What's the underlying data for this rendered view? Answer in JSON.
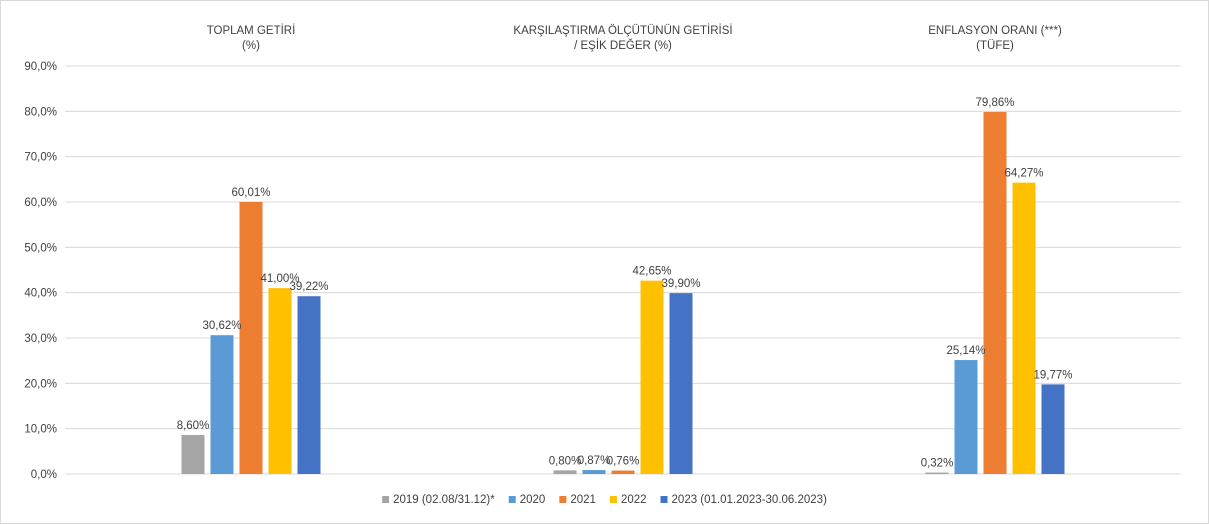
{
  "chart_data": {
    "type": "bar",
    "categories": [
      [
        "TOPLAM GETİRİ",
        "(%)"
      ],
      [
        "KARŞILAŞTIRMA ÖLÇÜTÜNÜN GETİRİSİ",
        "/ EŞİK DEĞER (%)"
      ],
      [
        "ENFLASYON ORANI (***)",
        "(TÜFE)"
      ]
    ],
    "series": [
      {
        "name": "2019 (02.08/31.12)*",
        "color": "#a5a5a5",
        "values": [
          8.6,
          0.8,
          0.32
        ],
        "labels": [
          "8,60%",
          "0,80%",
          "0,32%"
        ]
      },
      {
        "name": "2020",
        "color": "#5b9bd5",
        "values": [
          30.62,
          0.87,
          25.14
        ],
        "labels": [
          "30,62%",
          "0,87%",
          "25,14%"
        ]
      },
      {
        "name": "2021",
        "color": "#ed7d31",
        "values": [
          60.01,
          0.76,
          79.86
        ],
        "labels": [
          "60,01%",
          "0,76%",
          "79,86%"
        ]
      },
      {
        "name": "2022",
        "color": "#ffc000",
        "values": [
          41.0,
          42.65,
          64.27
        ],
        "labels": [
          "41,00%",
          "42,65%",
          "64,27%"
        ]
      },
      {
        "name": "2023 (01.01.2023-30.06.2023)",
        "color": "#4472c4",
        "values": [
          39.22,
          39.9,
          19.77
        ],
        "labels": [
          "39,22%",
          "39,90%",
          "19,77%"
        ]
      }
    ],
    "yticks": [
      "0,0%",
      "10,0%",
      "20,0%",
      "30,0%",
      "40,0%",
      "50,0%",
      "60,0%",
      "70,0%",
      "80,0%",
      "90,0%"
    ],
    "ylim": [
      0,
      90
    ],
    "grid": true,
    "legend_position": "bottom"
  }
}
